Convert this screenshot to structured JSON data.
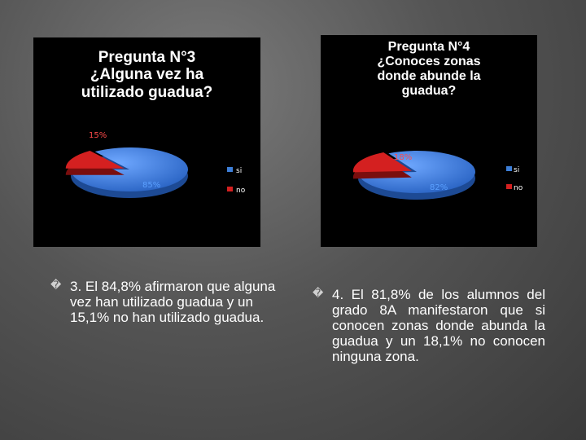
{
  "slide": {
    "captions": [
      "3. El 84,8% afirmaron que alguna vez han utilizado guadua y un 15,1% no han utilizado guadua.",
      "4. El 81,8% de los alumnos del grado 8A manifestaron que si conocen zonas donde abunda la guadua y un 18,1% no conocen ninguna zona."
    ],
    "bullet_glyph": "�"
  },
  "colors": {
    "si": "#3d7fd9",
    "no": "#d42020"
  },
  "chart_data": [
    {
      "type": "pie",
      "title_lines": [
        "Pregunta N°3",
        "¿Alguna vez ha",
        "utilizado guadua?"
      ],
      "categories": [
        "si",
        "no"
      ],
      "values": [
        85,
        15
      ],
      "data_labels": [
        "85%",
        "15%"
      ],
      "legend": {
        "position": "right",
        "entries": [
          "si",
          "no"
        ]
      }
    },
    {
      "type": "pie",
      "title_lines": [
        "Pregunta N°4",
        "¿Conoces zonas",
        "donde abunde la",
        "guadua?"
      ],
      "categories": [
        "si",
        "no"
      ],
      "values": [
        82,
        18
      ],
      "data_labels": [
        "82%",
        "18%"
      ],
      "legend": {
        "position": "right",
        "entries": [
          "si",
          "no"
        ]
      }
    }
  ]
}
